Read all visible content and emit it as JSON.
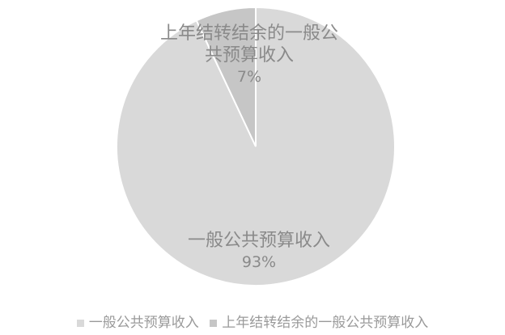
{
  "chart_data": {
    "type": "pie",
    "title": "",
    "categories": [
      "一般公共预算收入",
      "上年结转结余的一般公共预算收入"
    ],
    "values": [
      93,
      7
    ],
    "value_labels": [
      "93%",
      "7%"
    ],
    "colors": [
      "#d9d9d9",
      "#c6c6c6"
    ],
    "legend_position": "bottom"
  }
}
